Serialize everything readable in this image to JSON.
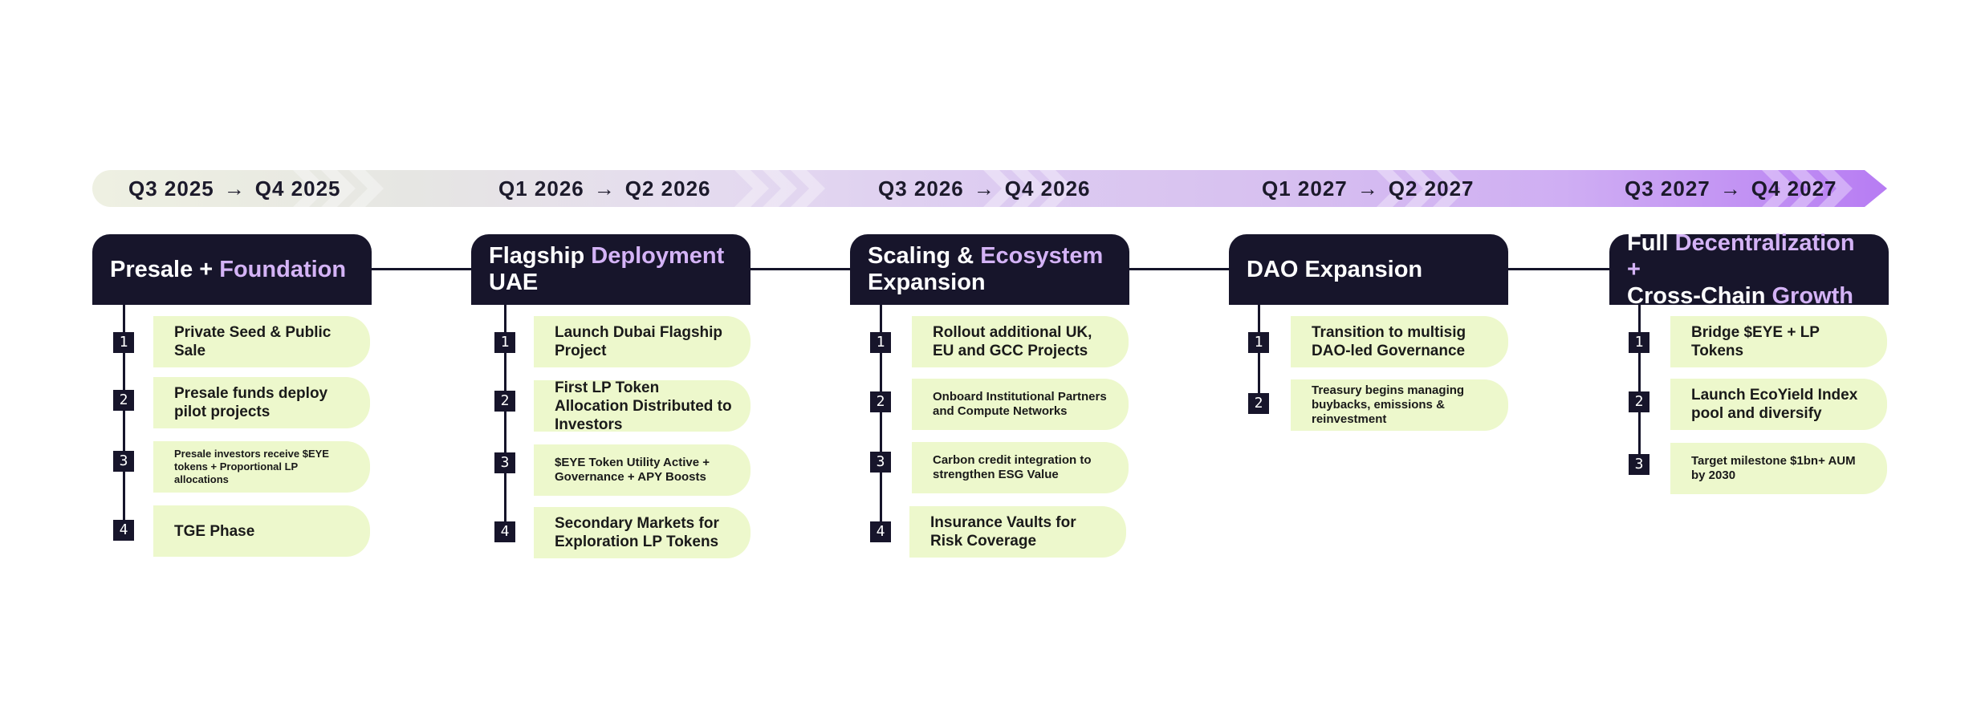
{
  "colors": {
    "header_bg": "#17152b",
    "header_highlight": "#d4b3f6",
    "pill_bg": "#edf8cc",
    "band_start": "#eef0e2",
    "band_end": "#b77cf3"
  },
  "timeline": [
    {
      "from": "Q3 2025",
      "arrow": "→",
      "to": "Q4 2025"
    },
    {
      "from": "Q1 2026",
      "arrow": "→",
      "to": "Q2 2026"
    },
    {
      "from": "Q3 2026",
      "arrow": "→",
      "to": "Q4 2026"
    },
    {
      "from": "Q1 2027",
      "arrow": "→",
      "to": "Q2 2027"
    },
    {
      "from": "Q3 2027",
      "arrow": "→",
      "to": "Q4 2027"
    }
  ],
  "phases": [
    {
      "title_plain": "Presale + ",
      "title_highlight": "Foundation",
      "items": [
        {
          "num": "1",
          "text": "Private Seed & Public Sale"
        },
        {
          "num": "2",
          "text": "Presale funds deploy pilot projects"
        },
        {
          "num": "3",
          "text": "Presale investors receive $EYE tokens + Proportional LP allocations"
        },
        {
          "num": "4",
          "text": "TGE Phase"
        }
      ]
    },
    {
      "title_plain": "Flagship ",
      "title_highlight": "Deployment",
      "title_tail": "UAE",
      "items": [
        {
          "num": "1",
          "text": "Launch Dubai Flagship Project"
        },
        {
          "num": "2",
          "text": "First LP Token Allocation Distributed to Investors"
        },
        {
          "num": "3",
          "text": "$EYE Token Utility Active + Governance + APY Boosts"
        },
        {
          "num": "4",
          "text": "Secondary Markets for Exploration LP Tokens"
        }
      ]
    },
    {
      "title_plain": "Scaling & ",
      "title_highlight": "Ecosystem",
      "title_tail": "Expansion",
      "items": [
        {
          "num": "1",
          "text": "Rollout additional UK, EU and GCC Projects"
        },
        {
          "num": "2",
          "text": "Onboard Institutional Partners and Compute Networks"
        },
        {
          "num": "3",
          "text": "Carbon credit integration to strengthen ESG Value"
        },
        {
          "num": "4",
          "text": "Insurance Vaults for Risk Coverage"
        }
      ]
    },
    {
      "title_plain": "DAO Expansion",
      "title_highlight": "",
      "items": [
        {
          "num": "1",
          "text": "Transition to multisig DAO-led Governance"
        },
        {
          "num": "2",
          "text": "Treasury begins managing buybacks, emissions & reinvestment"
        }
      ]
    },
    {
      "title_plain": "Full ",
      "title_highlight": "Decentralization +",
      "title_tail": "Cross-Chain ",
      "title_tail_highlight": "Growth",
      "items": [
        {
          "num": "1",
          "text": "Bridge $EYE + LP Tokens"
        },
        {
          "num": "2",
          "text": "Launch EcoYield Index pool and diversify"
        },
        {
          "num": "3",
          "text": "Target milestone $1bn+ AUM by 2030"
        }
      ]
    }
  ]
}
